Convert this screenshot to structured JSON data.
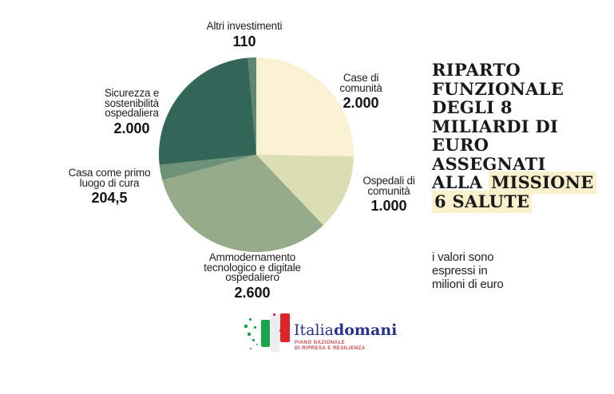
{
  "chart_data": {
    "type": "pie",
    "title": "RIPARTO FUNZIONALE DEGLI 8 MILIARDI DI EURO ASSEGNATI ALLA MISSIONE 6 SALUTE",
    "units_note": "i valori sono espressi in milioni di euro",
    "start_angle_deg": 0,
    "direction": "clockwise",
    "slices": [
      {
        "label": "Case di comunità",
        "value": 2000,
        "display_value": "2.000",
        "color": "#faf0d2"
      },
      {
        "label": "Ospedali di comunità",
        "value": 1000,
        "display_value": "1.000",
        "color": "#dbddb2"
      },
      {
        "label": "Ammodernamento tecnologico e digitale ospedaliero",
        "value": 2600,
        "display_value": "2.600",
        "color": "#96ab8a"
      },
      {
        "label": "Casa come primo luogo di cura",
        "value": 204.5,
        "display_value": "204,5",
        "color": "#6e9278"
      },
      {
        "label": "Sicurezza e sostenibilità ospedaliera",
        "value": 2000,
        "display_value": "2.000",
        "color": "#336659"
      },
      {
        "label": "Altri investimenti",
        "value": 110,
        "display_value": "110",
        "color": "#5d8677"
      }
    ]
  },
  "title": {
    "highlight_color": "#fbf0cd",
    "lines": [
      {
        "text": "RIPARTO"
      },
      {
        "text": "FUNZIONALE"
      },
      {
        "text": "DEGLI 8"
      },
      {
        "text": "MILIARDI DI"
      },
      {
        "text": "EURO"
      },
      {
        "text": "ASSEGNATI"
      },
      {
        "text": "ALLA ",
        "highlight": "MISSIONE"
      },
      {
        "highlight": "6 SALUTE"
      }
    ]
  },
  "note": {
    "text": "i valori sono espressi in milioni di euro"
  },
  "logo": {
    "brand_regular": "Italia",
    "brand_bold": "domani",
    "tagline_line1": "PIANO NAZIONALE",
    "tagline_line2": "DI RIPRESA E RESILIENZA",
    "brand_color": "#27348f",
    "tagline_color": "#d8444a",
    "flag_icon": "pixelated-italian-flag"
  }
}
